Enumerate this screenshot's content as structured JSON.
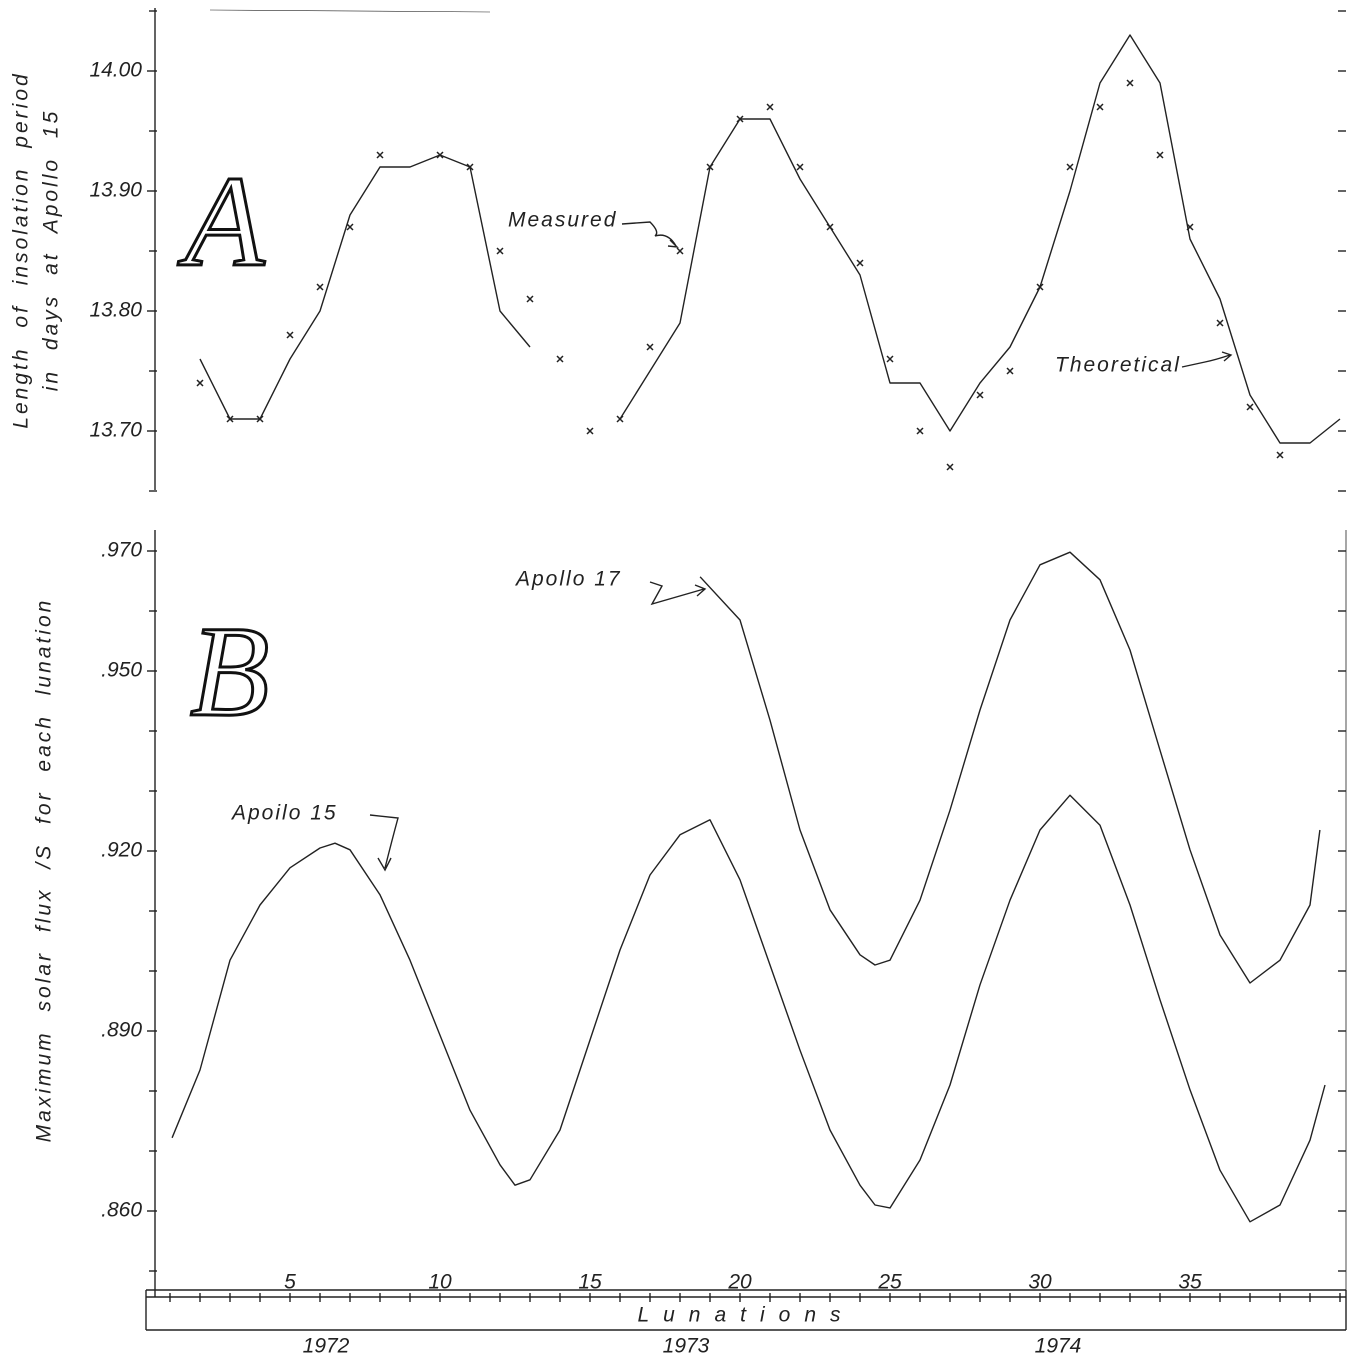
{
  "chart_data": [
    {
      "type": "line",
      "panel_label": "A",
      "ylabel": [
        "Length of insolation period",
        "in days at Apollo 15"
      ],
      "xlim": [
        0.2,
        40.2
      ],
      "ylim": [
        13.65,
        14.05
      ],
      "yticks": [
        {
          "value": 14,
          "label": "14.00"
        },
        {
          "value": 13.9,
          "label": "13.90"
        },
        {
          "value": 13.8,
          "label": "13.80"
        },
        {
          "value": 13.7,
          "label": "13.70"
        }
      ],
      "yminorticks": [
        14.05,
        13.95,
        13.85,
        13.75,
        13.65
      ],
      "series": [
        {
          "name": "Theoretical",
          "color": "#222222",
          "x": [
            2,
            3,
            4,
            5,
            6,
            7,
            8,
            9,
            10,
            11,
            12,
            13,
            14,
            15,
            16,
            17,
            18,
            19,
            20,
            21,
            22,
            23,
            24,
            25,
            26,
            27,
            28,
            29,
            30,
            31,
            32,
            33,
            34,
            35,
            36,
            37,
            38,
            39,
            40
          ],
          "values": [
            13.76,
            13.71,
            13.71,
            13.76,
            13.8,
            13.88,
            13.92,
            13.92,
            13.93,
            13.92,
            13.8,
            13.77,
            null,
            null,
            13.71,
            13.75,
            13.79,
            13.92,
            13.96,
            13.96,
            13.91,
            13.87,
            13.83,
            13.74,
            13.74,
            13.7,
            13.74,
            13.77,
            13.82,
            13.9,
            13.99,
            14.03,
            13.99,
            13.86,
            13.81,
            13.73,
            13.69,
            13.69,
            13.71
          ]
        },
        {
          "name": "Measured",
          "color": "#222222",
          "marker": "x",
          "x": [
            2,
            3,
            4,
            5,
            6,
            7,
            8,
            10,
            11,
            12,
            13,
            14,
            15,
            16,
            17,
            18,
            19,
            20,
            21,
            22,
            23,
            24,
            25,
            26,
            27,
            28,
            29,
            30,
            31,
            32,
            33,
            34,
            35,
            36,
            37,
            38
          ],
          "values": [
            13.74,
            13.71,
            13.71,
            13.78,
            13.82,
            13.87,
            13.93,
            13.93,
            13.92,
            13.85,
            13.81,
            13.76,
            13.7,
            13.71,
            13.77,
            13.85,
            13.92,
            13.96,
            13.97,
            13.92,
            13.87,
            13.84,
            13.76,
            13.7,
            13.67,
            13.73,
            13.75,
            13.82,
            13.92,
            13.97,
            13.99,
            13.93,
            13.87,
            13.79,
            13.72,
            13.68
          ]
        }
      ]
    },
    {
      "type": "line",
      "panel_label": "B",
      "ylabel": [
        "Maximum solar flux /S for each lunation"
      ],
      "xlabel": "Lunations",
      "xlim": [
        0.2,
        40.2
      ],
      "ylim": [
        0.846,
        0.9735
      ],
      "yticks": [
        {
          "value": 0.97,
          "label": ".970"
        },
        {
          "value": 0.95,
          "label": ".950"
        },
        {
          "value": 0.92,
          "label": ".920"
        },
        {
          "value": 0.89,
          "label": ".890"
        },
        {
          "value": 0.86,
          "label": ".860"
        }
      ],
      "yminorticks": [
        0.96,
        0.94,
        0.93,
        0.91,
        0.9,
        0.88,
        0.87,
        0.85
      ],
      "xticks": [
        5,
        10,
        15,
        20,
        25,
        30,
        35
      ],
      "xminorticks": [
        1,
        2,
        3,
        4,
        5,
        6,
        7,
        8,
        9,
        10,
        11,
        12,
        13,
        14,
        15,
        16,
        17,
        18,
        19,
        20,
        21,
        22,
        23,
        24,
        25,
        26,
        27,
        28,
        29,
        30,
        31,
        32,
        33,
        34,
        35,
        36,
        37,
        38,
        39,
        40
      ],
      "year_ticks": [
        {
          "value": 6.2,
          "label": "1972"
        },
        {
          "value": 18.2,
          "label": "1973"
        },
        {
          "value": 30.6,
          "label": "1974"
        }
      ],
      "series": [
        {
          "name": "Apoilo 15",
          "color": "#222222",
          "x": [
            1.07,
            2,
            3,
            4,
            5,
            6,
            6.5,
            7,
            8,
            9,
            10,
            11,
            12,
            12.5,
            13,
            14,
            15,
            16,
            17,
            18,
            19,
            20,
            21,
            22,
            23,
            24,
            24.5,
            25,
            26,
            27,
            28,
            29,
            30,
            31,
            32,
            33,
            34,
            35,
            36,
            37,
            38,
            39,
            39.5
          ],
          "values": [
            0.8722,
            0.8835,
            0.9018,
            0.911,
            0.9172,
            0.9205,
            0.9213,
            0.9202,
            0.9127,
            0.9018,
            0.8893,
            0.8768,
            0.8677,
            0.8643,
            0.8652,
            0.8735,
            0.8885,
            0.9035,
            0.916,
            0.9227,
            0.9252,
            0.9152,
            0.901,
            0.8868,
            0.8735,
            0.8643,
            0.861,
            0.8605,
            0.8685,
            0.881,
            0.8977,
            0.9118,
            0.9235,
            0.9293,
            0.9243,
            0.911,
            0.8952,
            0.8802,
            0.8668,
            0.8582,
            0.861,
            0.8718,
            0.881
          ]
        },
        {
          "name": "Apollo 17",
          "color": "#222222",
          "x": [
            18.67,
            20,
            21,
            22,
            23,
            24,
            24.5,
            25,
            26,
            27,
            28,
            29,
            30,
            31,
            32,
            33,
            34,
            35,
            36,
            37,
            38,
            39,
            39.33
          ],
          "values": [
            0.9657,
            0.9585,
            0.9418,
            0.9235,
            0.9102,
            0.9027,
            0.901,
            0.9018,
            0.9118,
            0.9268,
            0.9435,
            0.9585,
            0.9677,
            0.9698,
            0.9652,
            0.9535,
            0.9368,
            0.9202,
            0.906,
            0.898,
            0.9018,
            0.911,
            0.9235
          ]
        }
      ]
    }
  ]
}
